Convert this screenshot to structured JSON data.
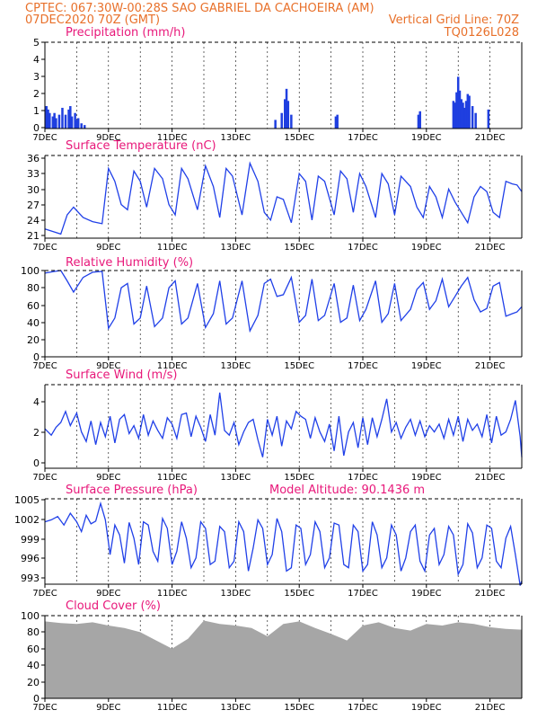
{
  "header": {
    "line1": "CPTEC:   067:30W-00:28S  SAO GABRIEL DA CACHOEIRA (AM)",
    "line2_left": "07DEC2020 70Z (GMT)",
    "line2_right": "Vertical Grid Line: 70Z",
    "line3_right": "TQ0126L028"
  },
  "colors": {
    "header": "#e8702a",
    "title": "#e8187a",
    "series": "#2040e8",
    "bar": "#1f3fe0",
    "cloud": "#a6a6a6",
    "frame": "#000000"
  },
  "x_tick_labels": [
    "7DEC",
    "9DEC",
    "11DEC",
    "13DEC",
    "15DEC",
    "17DEC",
    "19DEC",
    "21DEC"
  ],
  "chart_data": [
    {
      "type": "bar",
      "title": "Precipitation (mm/h)",
      "xlim": [
        0,
        15
      ],
      "ylim": [
        0,
        5
      ],
      "yticks": [
        "0",
        "1",
        "2",
        "3",
        "4",
        "5"
      ],
      "x": [
        0.05,
        0.1,
        0.15,
        0.25,
        0.3,
        0.35,
        0.45,
        0.55,
        0.65,
        0.75,
        0.8,
        0.85,
        0.95,
        1.0,
        1.05,
        1.15,
        1.25,
        7.25,
        7.45,
        7.55,
        7.6,
        7.65,
        7.75,
        9.15,
        9.2,
        11.75,
        11.8,
        12.85,
        12.9,
        12.95,
        13.0,
        13.05,
        13.1,
        13.15,
        13.2,
        13.25,
        13.3,
        13.35,
        13.45,
        13.55,
        13.95
      ],
      "values": [
        1.3,
        1.1,
        0.9,
        0.7,
        0.9,
        0.6,
        0.8,
        1.2,
        0.8,
        1.1,
        1.3,
        0.7,
        0.9,
        0.5,
        0.6,
        0.3,
        0.2,
        0.5,
        0.9,
        1.7,
        2.3,
        1.6,
        0.8,
        0.7,
        0.8,
        0.8,
        1.0,
        1.6,
        1.5,
        2.1,
        3.0,
        2.2,
        1.7,
        1.5,
        1.2,
        1.6,
        2.0,
        1.9,
        1.3,
        0.9,
        1.1
      ]
    },
    {
      "type": "line",
      "title": "Surface Temperature (nC)",
      "xlim": [
        0,
        15
      ],
      "ylim": [
        20,
        36
      ],
      "yticks": [
        "21",
        "24",
        "27",
        "30",
        "33",
        "36"
      ],
      "series": [
        {
          "x": [
            0,
            0.3,
            0.5,
            0.7,
            0.9,
            1.2,
            1.5,
            1.8,
            2.0,
            2.2,
            2.4,
            2.6,
            2.8,
            3.0,
            3.2,
            3.45,
            3.7,
            3.9,
            4.1,
            4.3,
            4.5,
            4.8,
            5.05,
            5.3,
            5.5,
            5.7,
            5.9,
            6.2,
            6.45,
            6.7,
            6.9,
            7.1,
            7.3,
            7.5,
            7.75,
            8.0,
            8.2,
            8.4,
            8.6,
            8.8,
            9.1,
            9.3,
            9.5,
            9.7,
            9.9,
            10.1,
            10.4,
            10.6,
            10.8,
            11.0,
            11.2,
            11.5,
            11.7,
            11.9,
            12.1,
            12.3,
            12.5,
            12.7,
            12.9,
            13.1,
            13.3,
            13.5,
            13.7,
            13.9,
            14.1,
            14.3,
            14.5,
            14.7,
            14.85,
            15.0
          ],
          "values": [
            21.8,
            21.2,
            20.8,
            24.5,
            26.0,
            24.0,
            23.2,
            22.8,
            33.5,
            31.0,
            26.5,
            25.5,
            33.0,
            31.0,
            26.0,
            33.5,
            31.5,
            26.5,
            24.5,
            33.5,
            31.5,
            25.5,
            34.0,
            30.0,
            24.0,
            33.5,
            32.0,
            24.5,
            34.5,
            31.0,
            25.0,
            23.5,
            28.0,
            27.5,
            23.0,
            32.5,
            31.0,
            23.5,
            32.0,
            31.0,
            24.5,
            33.0,
            31.5,
            25.0,
            32.5,
            30.0,
            24.0,
            32.5,
            30.5,
            24.5,
            32.0,
            30.0,
            26.0,
            24.0,
            30.0,
            28.0,
            24.0,
            29.5,
            27.0,
            25.0,
            23.0,
            28.0,
            30.0,
            29.0,
            25.0,
            24.0,
            31.0,
            30.5,
            30.3,
            29.0
          ]
        }
      ]
    },
    {
      "type": "line",
      "title": "Relative Humidity (%)",
      "xlim": [
        0,
        15
      ],
      "ylim": [
        0,
        100
      ],
      "yticks": [
        "0",
        "20",
        "40",
        "60",
        "80",
        "100"
      ],
      "series": [
        {
          "x": [
            0,
            0.3,
            0.5,
            0.7,
            0.9,
            1.2,
            1.5,
            1.8,
            2.0,
            2.2,
            2.4,
            2.6,
            2.8,
            3.0,
            3.2,
            3.45,
            3.7,
            3.9,
            4.1,
            4.3,
            4.5,
            4.8,
            5.05,
            5.3,
            5.5,
            5.7,
            5.9,
            6.2,
            6.45,
            6.7,
            6.9,
            7.1,
            7.3,
            7.5,
            7.75,
            8.0,
            8.2,
            8.4,
            8.6,
            8.8,
            9.1,
            9.3,
            9.5,
            9.7,
            9.9,
            10.1,
            10.4,
            10.6,
            10.8,
            11.0,
            11.2,
            11.5,
            11.7,
            11.9,
            12.1,
            12.3,
            12.5,
            12.7,
            12.9,
            13.1,
            13.3,
            13.5,
            13.7,
            13.9,
            14.1,
            14.3,
            14.5,
            14.7,
            14.85,
            15.0
          ],
          "values": [
            97,
            99,
            100,
            88,
            75,
            92,
            98,
            99,
            33,
            45,
            80,
            85,
            38,
            45,
            82,
            35,
            45,
            80,
            88,
            38,
            45,
            85,
            34,
            50,
            88,
            38,
            45,
            88,
            30,
            48,
            85,
            90,
            70,
            72,
            92,
            40,
            48,
            90,
            42,
            48,
            85,
            40,
            45,
            83,
            42,
            55,
            88,
            40,
            50,
            85,
            42,
            55,
            78,
            86,
            55,
            65,
            90,
            58,
            70,
            82,
            92,
            66,
            52,
            56,
            82,
            86,
            47,
            50,
            52,
            58
          ]
        }
      ]
    },
    {
      "type": "line",
      "title": "Surface Wind (m/s)",
      "xlim": [
        0,
        15
      ],
      "ylim": [
        -0.5,
        4.8
      ],
      "yticks": [
        "0",
        "2",
        "4"
      ],
      "series": [
        {
          "x": [
            0,
            0.2,
            0.35,
            0.5,
            0.65,
            0.8,
            1.0,
            1.15,
            1.3,
            1.45,
            1.6,
            1.75,
            1.9,
            2.05,
            2.2,
            2.35,
            2.5,
            2.65,
            2.8,
            2.95,
            3.1,
            3.25,
            3.4,
            3.55,
            3.7,
            3.85,
            4.0,
            4.15,
            4.3,
            4.45,
            4.6,
            4.75,
            4.9,
            5.05,
            5.2,
            5.35,
            5.5,
            5.65,
            5.8,
            5.95,
            6.1,
            6.25,
            6.4,
            6.55,
            6.7,
            6.85,
            7.0,
            7.15,
            7.3,
            7.45,
            7.6,
            7.75,
            7.9,
            8.05,
            8.2,
            8.35,
            8.5,
            8.65,
            8.8,
            8.95,
            9.1,
            9.25,
            9.4,
            9.55,
            9.7,
            9.85,
            10.0,
            10.15,
            10.3,
            10.45,
            10.6,
            10.75,
            10.9,
            11.05,
            11.2,
            11.35,
            11.5,
            11.65,
            11.8,
            11.95,
            12.1,
            12.25,
            12.4,
            12.55,
            12.7,
            12.85,
            13.0,
            13.15,
            13.3,
            13.45,
            13.6,
            13.75,
            13.9,
            14.05,
            14.2,
            14.35,
            14.5,
            14.65,
            14.8,
            14.95,
            15.0
          ],
          "values": [
            2.0,
            1.6,
            2.1,
            2.4,
            3.1,
            2.2,
            3.0,
            1.8,
            1.2,
            2.5,
            1.0,
            2.4,
            1.5,
            2.8,
            1.1,
            2.6,
            2.9,
            1.7,
            2.2,
            1.4,
            2.9,
            1.6,
            2.5,
            1.9,
            1.4,
            2.7,
            2.3,
            1.4,
            2.9,
            3.0,
            1.5,
            2.8,
            2.1,
            1.2,
            2.9,
            1.6,
            4.3,
            1.9,
            1.6,
            2.4,
            1.0,
            1.8,
            2.4,
            2.6,
            1.3,
            0.2,
            2.6,
            1.6,
            2.8,
            0.9,
            2.5,
            2.0,
            3.1,
            2.8,
            2.6,
            1.4,
            2.7,
            1.8,
            1.2,
            2.3,
            0.6,
            2.8,
            0.3,
            1.8,
            2.4,
            0.8,
            2.7,
            1.0,
            2.7,
            1.5,
            2.6,
            3.9,
            1.8,
            2.4,
            1.4,
            2.1,
            2.6,
            1.6,
            2.5,
            1.5,
            2.2,
            1.8,
            2.3,
            1.4,
            2.6,
            1.6,
            2.8,
            1.2,
            2.6,
            1.9,
            2.3,
            1.5,
            2.9,
            1.1,
            2.8,
            1.6,
            1.8,
            2.6,
            3.8,
            1.5,
            0.2
          ]
        }
      ]
    },
    {
      "type": "line",
      "title": "Surface Pressure (hPa)",
      "annotation": "Model Altitude: 90.1436 m",
      "xlim": [
        0,
        15
      ],
      "ylim": [
        992,
        1005
      ],
      "yticks": [
        "993",
        "996",
        "999",
        "1002",
        "1005"
      ],
      "series": [
        {
          "x": [
            0,
            0.2,
            0.4,
            0.6,
            0.8,
            1.0,
            1.15,
            1.3,
            1.45,
            1.6,
            1.75,
            1.9,
            2.05,
            2.2,
            2.35,
            2.5,
            2.65,
            2.8,
            2.95,
            3.1,
            3.25,
            3.4,
            3.55,
            3.7,
            3.85,
            4.0,
            4.15,
            4.3,
            4.45,
            4.6,
            4.75,
            4.9,
            5.05,
            5.2,
            5.35,
            5.5,
            5.65,
            5.8,
            5.95,
            6.1,
            6.25,
            6.4,
            6.55,
            6.7,
            6.85,
            7.0,
            7.15,
            7.3,
            7.45,
            7.6,
            7.75,
            7.9,
            8.05,
            8.2,
            8.35,
            8.5,
            8.65,
            8.8,
            8.95,
            9.1,
            9.25,
            9.4,
            9.55,
            9.7,
            9.85,
            10.0,
            10.15,
            10.3,
            10.45,
            10.6,
            10.75,
            10.9,
            11.05,
            11.2,
            11.35,
            11.5,
            11.65,
            11.8,
            11.95,
            12.1,
            12.25,
            12.4,
            12.55,
            12.7,
            12.85,
            13.0,
            13.15,
            13.3,
            13.45,
            13.6,
            13.75,
            13.9,
            14.05,
            14.2,
            14.35,
            14.5,
            14.65,
            14.8,
            14.95,
            15.0
          ],
          "values": [
            1001.5,
            1001.8,
            1002.3,
            1001.0,
            1002.8,
            1001.5,
            1000.0,
            1002.5,
            1001.2,
            1001.6,
            1004.3,
            1001.8,
            996.5,
            1001.0,
            999.5,
            995.2,
            1001.4,
            999.0,
            995.0,
            1001.5,
            1001.0,
            997.0,
            995.5,
            1002.0,
            1000.5,
            995.0,
            997.0,
            1001.5,
            999.0,
            994.5,
            996.0,
            1001.5,
            1000.5,
            995.0,
            995.5,
            1000.8,
            1000.0,
            994.5,
            995.5,
            1001.5,
            1000.0,
            994.0,
            997.5,
            1001.8,
            1000.5,
            995.0,
            996.5,
            1002.0,
            1000.0,
            994.0,
            994.5,
            1001.0,
            1000.5,
            995.0,
            996.5,
            1001.5,
            1000.0,
            994.5,
            996.0,
            1001.3,
            1001.0,
            995.0,
            994.5,
            1001.0,
            1000.0,
            994.0,
            995.0,
            1001.5,
            999.5,
            994.5,
            996.0,
            1001.0,
            999.5,
            994.0,
            996.0,
            1000.0,
            1001.0,
            995.5,
            994.0,
            999.5,
            1000.5,
            995.0,
            996.5,
            1000.8,
            999.5,
            993.5,
            995.0,
            1001.2,
            999.8,
            994.5,
            996.0,
            1001.0,
            1000.5,
            995.5,
            994.5,
            999.0,
            1000.8,
            996.5,
            991.8,
            992.5
          ]
        }
      ]
    },
    {
      "type": "area",
      "title": "Cloud Cover (%)",
      "xlim": [
        0,
        15
      ],
      "ylim": [
        0,
        100
      ],
      "yticks": [
        "0",
        "20",
        "40",
        "60",
        "80",
        "100"
      ],
      "x": [
        0,
        0.5,
        1.0,
        1.5,
        2.0,
        2.5,
        3.0,
        3.5,
        4.0,
        4.5,
        5.0,
        5.5,
        6.0,
        6.5,
        7.0,
        7.5,
        8.0,
        8.5,
        9.0,
        9.5,
        10.0,
        10.5,
        11.0,
        11.5,
        12.0,
        12.5,
        13.0,
        13.5,
        14.0,
        14.5,
        15.0
      ],
      "values": [
        93,
        91,
        90,
        92,
        88,
        85,
        80,
        70,
        60,
        72,
        94,
        90,
        88,
        85,
        75,
        90,
        93,
        85,
        78,
        70,
        88,
        92,
        85,
        82,
        90,
        88,
        92,
        90,
        86,
        84,
        83
      ]
    }
  ]
}
